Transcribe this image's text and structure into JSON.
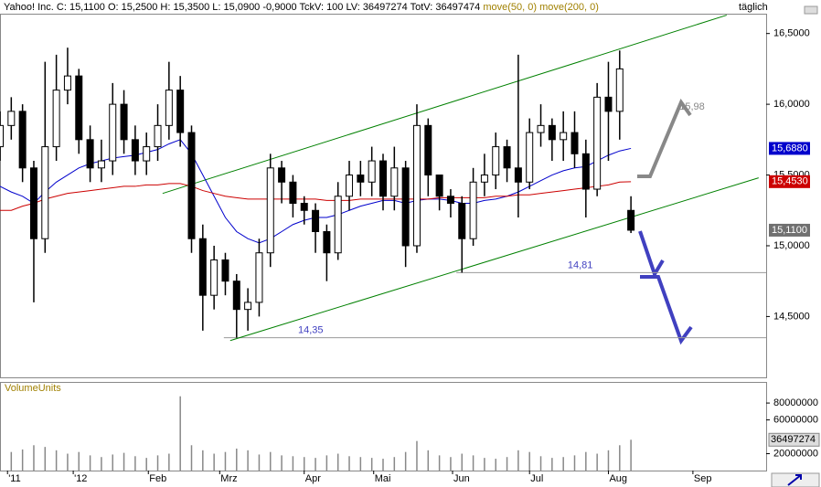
{
  "chart_data": {
    "type": "candlestick",
    "header": "Yahoo! Inc.  C: 15,1100  O: 15,2500  H: 15,3500  L: 15,0900  -0,9000  TckV: 100  LV: 36497274  TotV: 36497474",
    "period": "täglich",
    "volume_title": "VolumeUnits",
    "xlim": [
      0,
      204
    ],
    "xticks": [
      {
        "value": 2,
        "label": "'11"
      },
      {
        "value": 19.5,
        "label": "'12"
      },
      {
        "value": 39.5,
        "label": "Feb"
      },
      {
        "value": 58.5,
        "label": "Mrz"
      },
      {
        "value": 81,
        "label": "Apr"
      },
      {
        "value": 99.5,
        "label": "Mai"
      },
      {
        "value": 120.5,
        "label": "Jun"
      },
      {
        "value": 141,
        "label": "Jul"
      },
      {
        "value": 162,
        "label": "Aug"
      },
      {
        "value": 184.5,
        "label": "Sep"
      }
    ],
    "ylim": [
      14.07,
      16.64
    ],
    "yticks": [
      {
        "value": 16.5,
        "label": "16,5000"
      },
      {
        "value": 16,
        "label": "16,0000"
      },
      {
        "value": 15.5,
        "label": "15,5000"
      },
      {
        "value": 15,
        "label": "15,0000"
      },
      {
        "value": 14.5,
        "label": "14,5000"
      }
    ],
    "vlim": [
      0,
      105000000
    ],
    "vticks": [
      80000000,
      60000000,
      20000000
    ],
    "x": [
      0,
      3,
      6,
      9,
      12,
      15,
      18,
      21,
      24,
      27,
      30,
      33,
      36,
      39,
      42,
      45,
      48,
      51,
      54,
      57,
      60,
      63,
      66,
      69,
      72,
      75,
      78,
      81,
      84,
      87,
      90,
      93,
      96,
      99,
      102,
      105,
      108,
      111,
      114,
      117,
      120,
      123,
      126,
      129,
      132,
      135,
      138,
      141,
      144,
      147,
      150,
      153,
      156,
      159,
      162,
      165,
      168
    ],
    "open": [
      15.7,
      15.85,
      15.95,
      15.55,
      15.05,
      15.7,
      16.1,
      16.2,
      15.75,
      15.55,
      15.6,
      16.0,
      15.75,
      15.6,
      15.7,
      15.85,
      16.1,
      15.8,
      15.05,
      14.65,
      14.9,
      14.75,
      14.55,
      14.6,
      14.95,
      15.55,
      15.45,
      15.3,
      15.25,
      15.1,
      14.95,
      15.35,
      15.5,
      15.45,
      15.6,
      15.35,
      15.55,
      15.0,
      15.85,
      15.5,
      15.35,
      15.3,
      15.05,
      15.45,
      15.5,
      15.7,
      15.55,
      15.45,
      15.8,
      15.85,
      15.75,
      15.8,
      15.65,
      15.4,
      16.05,
      15.95,
      15.25
    ],
    "high": [
      15.95,
      16.05,
      16.0,
      15.6,
      16.3,
      16.35,
      16.4,
      16.25,
      15.85,
      15.75,
      16.15,
      16.1,
      15.85,
      15.8,
      16.0,
      16.3,
      16.2,
      15.85,
      15.15,
      15.0,
      14.95,
      14.8,
      14.7,
      15.05,
      15.65,
      15.6,
      15.5,
      15.35,
      15.3,
      15.15,
      15.45,
      15.6,
      15.6,
      15.7,
      15.65,
      15.7,
      15.6,
      16.0,
      15.9,
      15.5,
      15.4,
      15.35,
      15.55,
      15.65,
      15.8,
      15.75,
      16.35,
      15.9,
      16.0,
      15.9,
      15.95,
      15.95,
      15.75,
      16.15,
      16.3,
      16.38,
      15.35
    ],
    "low": [
      15.6,
      15.75,
      15.45,
      14.6,
      14.95,
      15.6,
      16.0,
      15.65,
      15.45,
      15.45,
      15.5,
      15.65,
      15.5,
      15.5,
      15.6,
      15.75,
      15.7,
      14.95,
      14.4,
      14.55,
      14.65,
      14.35,
      14.4,
      14.5,
      14.85,
      15.3,
      15.2,
      15.15,
      14.95,
      14.75,
      14.9,
      15.25,
      15.35,
      15.35,
      15.25,
      15.25,
      14.85,
      14.95,
      15.35,
      15.25,
      15.2,
      14.81,
      15.0,
      15.35,
      15.4,
      15.45,
      15.2,
      15.4,
      15.7,
      15.6,
      15.6,
      15.55,
      15.2,
      15.35,
      15.6,
      15.75,
      15.09
    ],
    "close": [
      15.85,
      15.95,
      15.55,
      15.05,
      15.7,
      16.1,
      16.2,
      15.75,
      15.55,
      15.6,
      16.0,
      15.75,
      15.6,
      15.7,
      15.85,
      16.1,
      15.8,
      15.05,
      14.65,
      14.9,
      14.75,
      14.55,
      14.6,
      14.95,
      15.55,
      15.45,
      15.3,
      15.25,
      15.1,
      14.95,
      15.35,
      15.5,
      15.45,
      15.6,
      15.35,
      15.55,
      15.0,
      15.85,
      15.5,
      15.35,
      15.3,
      15.05,
      15.45,
      15.5,
      15.7,
      15.55,
      15.45,
      15.8,
      15.85,
      15.75,
      15.8,
      15.65,
      15.4,
      16.05,
      15.95,
      16.25,
      15.11
    ],
    "volume": [
      18000000,
      22000000,
      25000000,
      30000000,
      28000000,
      24000000,
      20000000,
      22000000,
      18000000,
      16000000,
      19000000,
      21000000,
      17000000,
      15000000,
      18000000,
      20000000,
      88000000,
      30000000,
      24000000,
      20000000,
      22000000,
      26000000,
      24000000,
      19000000,
      22000000,
      18000000,
      17000000,
      16000000,
      15000000,
      18000000,
      20000000,
      17000000,
      16000000,
      15000000,
      14000000,
      16000000,
      22000000,
      35000000,
      24000000,
      18000000,
      16000000,
      20000000,
      18000000,
      15000000,
      14000000,
      16000000,
      24000000,
      22000000,
      17000000,
      15000000,
      16000000,
      18000000,
      22000000,
      20000000,
      24000000,
      30000000,
      36497274
    ],
    "series": [
      {
        "name": "move(50, 0)",
        "color": "#0000cc",
        "values": [
          15.42,
          15.38,
          15.35,
          15.3,
          15.38,
          15.45,
          15.5,
          15.55,
          15.58,
          15.6,
          15.62,
          15.63,
          15.64,
          15.66,
          15.68,
          15.72,
          15.75,
          15.65,
          15.5,
          15.35,
          15.2,
          15.1,
          15.05,
          15.02,
          15.05,
          15.1,
          15.15,
          15.18,
          15.2,
          15.2,
          15.22,
          15.25,
          15.28,
          15.3,
          15.32,
          15.32,
          15.3,
          15.32,
          15.33,
          15.33,
          15.32,
          15.3,
          15.3,
          15.32,
          15.33,
          15.35,
          15.38,
          15.42,
          15.46,
          15.5,
          15.53,
          15.55,
          15.56,
          15.6,
          15.64,
          15.67,
          15.688
        ]
      },
      {
        "name": "move(200, 0)",
        "color": "#cc0000",
        "values": [
          15.25,
          15.25,
          15.28,
          15.3,
          15.33,
          15.35,
          15.37,
          15.38,
          15.39,
          15.4,
          15.41,
          15.42,
          15.42,
          15.43,
          15.43,
          15.44,
          15.44,
          15.42,
          15.39,
          15.37,
          15.35,
          15.34,
          15.33,
          15.33,
          15.33,
          15.33,
          15.33,
          15.33,
          15.33,
          15.32,
          15.32,
          15.32,
          15.33,
          15.33,
          15.33,
          15.33,
          15.33,
          15.33,
          15.33,
          15.34,
          15.34,
          15.34,
          15.34,
          15.34,
          15.35,
          15.35,
          15.36,
          15.36,
          15.37,
          15.38,
          15.39,
          15.4,
          15.41,
          15.42,
          15.43,
          15.45,
          15.453
        ]
      }
    ],
    "price_markers": [
      {
        "value": 15.688,
        "label": "15,6880",
        "color": "#0000cc"
      },
      {
        "value": 15.453,
        "label": "15,4530",
        "color": "#cc0000"
      },
      {
        "value": 15.11,
        "label": "15,1100",
        "color": "#707070"
      }
    ],
    "volume_marker": {
      "value": 36497274,
      "label": "36497274"
    },
    "trendlines": [
      {
        "x": [
          43.3,
          193.5
        ],
        "y": [
          15.37,
          16.63
        ],
        "color": "#008000"
      },
      {
        "x": [
          61.3,
          202
        ],
        "y": [
          14.33,
          15.48
        ],
        "color": "#008000"
      }
    ],
    "levels": [
      {
        "value": 14.81,
        "label": "14,81",
        "from": 121.5
      },
      {
        "value": 14.35,
        "label": "14,35",
        "from": 59.6
      }
    ],
    "target_label": {
      "value": 15.98,
      "label": "15,98"
    }
  }
}
